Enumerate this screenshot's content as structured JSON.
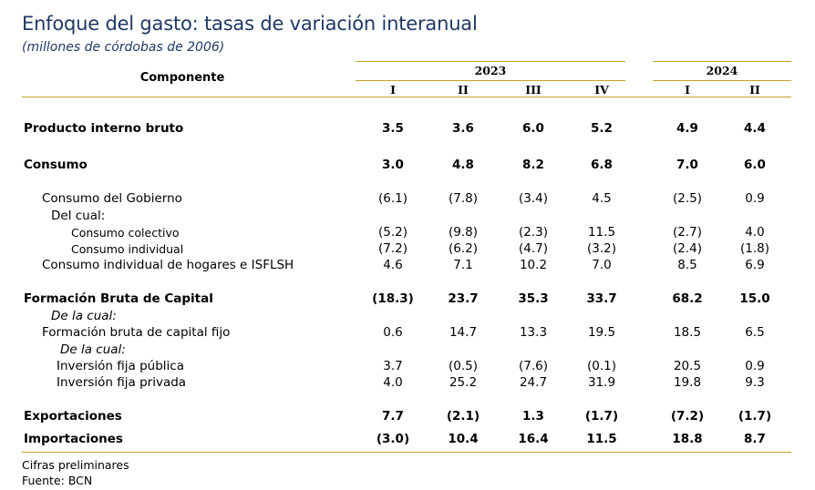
{
  "title": "Enfoque del gasto: tasas de variación interanual",
  "subtitle": "(millones de córdobas de 2006)",
  "header": {
    "component": "Componente",
    "year_2023": "2023",
    "year_2024": "2024",
    "quarters": [
      "I",
      "II",
      "III",
      "IV",
      "I",
      "II"
    ]
  },
  "rows": [
    {
      "label": "Producto interno bruto",
      "values": [
        "3.5",
        "3.6",
        "6.0",
        "5.2",
        "4.9",
        "4.4"
      ]
    },
    {
      "label": "Consumo",
      "values": [
        "3.0",
        "4.8",
        "8.2",
        "6.8",
        "7.0",
        "6.0"
      ]
    },
    {
      "label": "Consumo del Gobierno",
      "values": [
        "(6.1)",
        "(7.8)",
        "(3.4)",
        "4.5",
        "(2.5)",
        "0.9"
      ]
    },
    {
      "label": "Del cual:",
      "values": [
        "",
        "",
        "",
        "",
        "",
        ""
      ]
    },
    {
      "label": "Consumo colectivo",
      "values": [
        "(5.2)",
        "(9.8)",
        "(2.3)",
        "11.5",
        "(2.7)",
        "4.0"
      ]
    },
    {
      "label": "Consumo individual",
      "values": [
        "(7.2)",
        "(6.2)",
        "(4.7)",
        "(3.2)",
        "(2.4)",
        "(1.8)"
      ]
    },
    {
      "label": "Consumo individual de hogares e ISFLSH",
      "values": [
        "4.6",
        "7.1",
        "10.2",
        "7.0",
        "8.5",
        "6.9"
      ]
    },
    {
      "label": "Formación Bruta de Capital",
      "values": [
        "(18.3)",
        "23.7",
        "35.3",
        "33.7",
        "68.2",
        "15.0"
      ]
    },
    {
      "label": "De la cual:",
      "values": [
        "",
        "",
        "",
        "",
        "",
        ""
      ]
    },
    {
      "label": "Formación bruta de capital fijo",
      "values": [
        "0.6",
        "14.7",
        "13.3",
        "19.5",
        "18.5",
        "6.5"
      ]
    },
    {
      "label": "De la cual:",
      "values": [
        "",
        "",
        "",
        "",
        "",
        ""
      ]
    },
    {
      "label": "Inversión fija pública",
      "values": [
        "3.7",
        "(0.5)",
        "(7.6)",
        "(0.1)",
        "20.5",
        "0.9"
      ]
    },
    {
      "label": "Inversión fija privada",
      "values": [
        "4.0",
        "25.2",
        "24.7",
        "31.9",
        "19.8",
        "9.3"
      ]
    },
    {
      "label": "Exportaciones",
      "values": [
        "7.7",
        "(2.1)",
        "1.3",
        "(1.7)",
        "(7.2)",
        "(1.7)"
      ]
    },
    {
      "label": "Importaciones",
      "values": [
        "(3.0)",
        "10.4",
        "16.4",
        "11.5",
        "18.8",
        "8.7"
      ]
    }
  ],
  "footer": {
    "note": "Cifras preliminares",
    "source": "Fuente: BCN"
  },
  "colors": {
    "title": "#1f3864",
    "rule": "#c9a227"
  }
}
